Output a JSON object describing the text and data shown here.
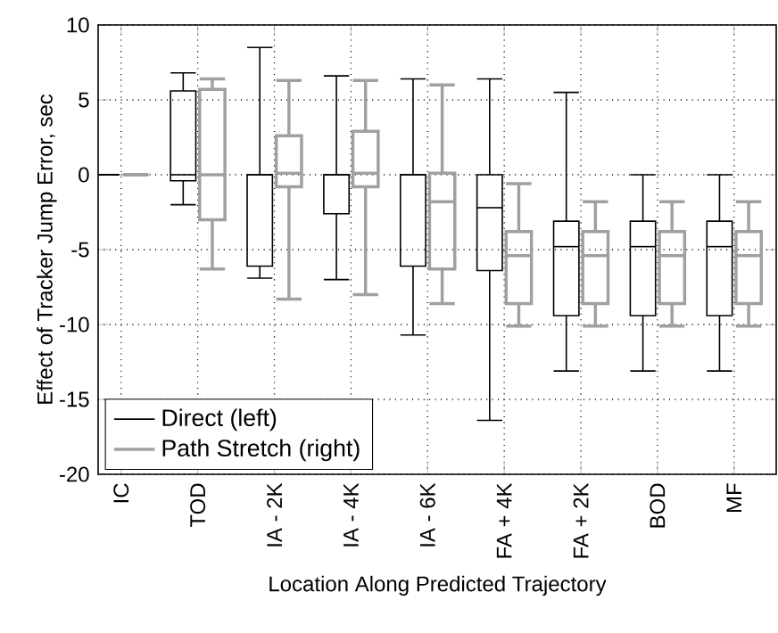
{
  "chart_data": {
    "type": "box",
    "xlabel": "Location Along Predicted Trajectory",
    "ylabel": "Effect of Tracker Jump Error, sec",
    "categories": [
      "IC",
      "TOD",
      "IA - 2K",
      "IA - 4K",
      "IA - 6K",
      "FA + 4K",
      "FA + 2K",
      "BOD",
      "MF"
    ],
    "ylim": [
      -20,
      10
    ],
    "yticks": [
      -20,
      -15,
      -10,
      -5,
      0,
      5,
      10
    ],
    "grid": true,
    "legend": "bottom left",
    "series": [
      {
        "name": "Direct (left)",
        "color": "#000000",
        "boxes": [
          {
            "low": 0,
            "q1": 0,
            "median": 0,
            "q3": 0,
            "high": 0
          },
          {
            "low": -2.0,
            "q1": -0.4,
            "median": 0,
            "q3": 5.6,
            "high": 6.8
          },
          {
            "low": -6.9,
            "q1": -6.1,
            "median": 0,
            "q3": 0,
            "high": 8.5
          },
          {
            "low": -7.0,
            "q1": -2.6,
            "median": 0,
            "q3": 0,
            "high": 6.6
          },
          {
            "low": -10.7,
            "q1": -6.1,
            "median": 0,
            "q3": 0,
            "high": 6.4
          },
          {
            "low": -16.4,
            "q1": -6.4,
            "median": -2.2,
            "q3": 0,
            "high": 6.4
          },
          {
            "low": -13.1,
            "q1": -9.4,
            "median": -4.8,
            "q3": -3.1,
            "high": 5.5
          },
          {
            "low": -13.1,
            "q1": -9.4,
            "median": -4.8,
            "q3": -3.1,
            "high": 0
          },
          {
            "low": -13.1,
            "q1": -9.4,
            "median": -4.8,
            "q3": -3.1,
            "high": 0
          }
        ]
      },
      {
        "name": "Path Stretch (right)",
        "color": "#a0a0a0",
        "boxes": [
          {
            "low": 0,
            "q1": 0,
            "median": 0,
            "q3": 0,
            "high": 0
          },
          {
            "low": -6.3,
            "q1": -3.0,
            "median": 0,
            "q3": 5.7,
            "high": 6.4
          },
          {
            "low": -8.3,
            "q1": -0.8,
            "median": 0.1,
            "q3": 2.6,
            "high": 6.3
          },
          {
            "low": -8.0,
            "q1": -0.8,
            "median": 0.1,
            "q3": 2.9,
            "high": 6.3
          },
          {
            "low": -8.6,
            "q1": -6.3,
            "median": -1.8,
            "q3": 0.1,
            "high": 6.0
          },
          {
            "low": -10.1,
            "q1": -8.6,
            "median": -5.4,
            "q3": -3.8,
            "high": -0.6
          },
          {
            "low": -10.1,
            "q1": -8.6,
            "median": -5.4,
            "q3": -3.8,
            "high": -1.8
          },
          {
            "low": -10.1,
            "q1": -8.6,
            "median": -5.4,
            "q3": -3.8,
            "high": -1.8
          },
          {
            "low": -10.1,
            "q1": -8.6,
            "median": -5.4,
            "q3": -3.8,
            "high": -1.8
          }
        ]
      }
    ]
  }
}
